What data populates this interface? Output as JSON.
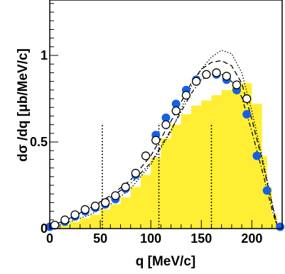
{
  "chart_data": {
    "type": "scatter",
    "title": "",
    "xlabel": "q [MeV/c]",
    "ylabel": "dσ /dq [μb/MeV/c]",
    "xlim": [
      0,
      230
    ],
    "ylim": [
      0,
      1.32
    ],
    "x_ticks": [
      0,
      50,
      100,
      150,
      200
    ],
    "y_ticks": [
      0,
      0.5,
      1
    ],
    "x_tick_labels": [
      "0",
      "50",
      "100",
      "150",
      "200"
    ],
    "y_tick_labels": [
      "0",
      "0.5",
      "1"
    ],
    "grid": false,
    "legend": "none",
    "vertical_markers": [
      {
        "x": 52,
        "y_top": 0.61
      },
      {
        "x": 108,
        "y_top": 0.61
      },
      {
        "x": 160,
        "y_top": 0.61
      }
    ],
    "series": [
      {
        "kind": "filled-histogram",
        "color": "#ffee33",
        "x": [
          0,
          10,
          20,
          30,
          40,
          50,
          60,
          70,
          80,
          90,
          100,
          110,
          120,
          130,
          140,
          150,
          160,
          170,
          180,
          190,
          200,
          210,
          215,
          220,
          225
        ],
        "values": [
          0,
          0.02,
          0.04,
          0.06,
          0.08,
          0.11,
          0.14,
          0.18,
          0.24,
          0.31,
          0.41,
          0.52,
          0.6,
          0.66,
          0.71,
          0.74,
          0.77,
          0.8,
          0.83,
          0.84,
          0.72,
          0.42,
          0.24,
          0.08,
          0
        ]
      },
      {
        "kind": "points",
        "marker": "filled-circle",
        "color": "#1560e6",
        "x": [
          0,
          5,
          15,
          25,
          35,
          45,
          55,
          65,
          75,
          85,
          95,
          105,
          115,
          125,
          135,
          145,
          155,
          165,
          175,
          185,
          195,
          205,
          215,
          228
        ],
        "values": [
          0.01,
          0.02,
          0.04,
          0.07,
          0.1,
          0.12,
          0.14,
          0.17,
          0.23,
          0.31,
          0.42,
          0.54,
          0.64,
          0.72,
          0.8,
          0.86,
          0.89,
          0.89,
          0.86,
          0.8,
          0.66,
          0.42,
          0.22,
          0.01
        ]
      },
      {
        "kind": "points",
        "marker": "open-circle",
        "color": "#000000",
        "x": [
          5,
          15,
          25,
          35,
          45,
          55,
          65,
          75,
          85,
          95,
          105,
          115,
          125,
          135,
          145,
          155,
          165,
          175,
          185,
          195
        ],
        "values": [
          0.02,
          0.05,
          0.08,
          0.11,
          0.13,
          0.15,
          0.19,
          0.24,
          0.32,
          0.42,
          0.51,
          0.6,
          0.68,
          0.77,
          0.85,
          0.89,
          0.9,
          0.88,
          0.83,
          0.75
        ]
      },
      {
        "kind": "line",
        "style": "dashed",
        "color": "#000000",
        "x": [
          0,
          20,
          40,
          60,
          80,
          100,
          120,
          140,
          150,
          160,
          170,
          180,
          190,
          200,
          210,
          220,
          225
        ],
        "values": [
          0.01,
          0.06,
          0.12,
          0.19,
          0.28,
          0.42,
          0.62,
          0.84,
          0.92,
          0.96,
          0.97,
          0.94,
          0.84,
          0.63,
          0.4,
          0.14,
          0.02
        ]
      },
      {
        "kind": "line",
        "style": "dotted",
        "color": "#000000",
        "x": [
          0,
          20,
          40,
          60,
          80,
          100,
          120,
          140,
          150,
          160,
          170,
          180,
          190,
          200,
          210,
          220,
          225
        ],
        "values": [
          0.01,
          0.04,
          0.08,
          0.14,
          0.23,
          0.37,
          0.56,
          0.82,
          0.92,
          0.99,
          1.03,
          1.01,
          0.9,
          0.68,
          0.42,
          0.15,
          0.02
        ]
      },
      {
        "kind": "line",
        "style": "dash-dot",
        "color": "#000000",
        "x": [
          0,
          20,
          40,
          60,
          80,
          100,
          120,
          140,
          150,
          160,
          170,
          180,
          190,
          200,
          210,
          220,
          225
        ],
        "values": [
          0.01,
          0.06,
          0.12,
          0.18,
          0.26,
          0.38,
          0.57,
          0.78,
          0.86,
          0.89,
          0.89,
          0.85,
          0.76,
          0.56,
          0.34,
          0.11,
          0.01
        ]
      }
    ]
  }
}
